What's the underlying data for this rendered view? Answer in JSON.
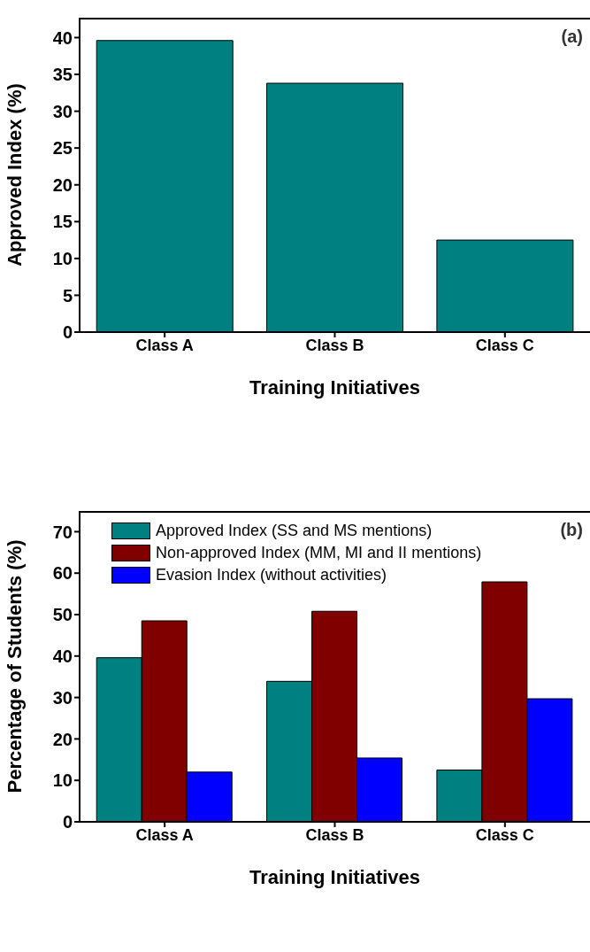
{
  "chart_data": [
    {
      "type": "bar",
      "xlabel": "Training Initiatives",
      "ylabel": "Approved Index (%)",
      "annotations": [
        "(a)"
      ],
      "categories": [
        "Class A",
        "Class B",
        "Class C"
      ],
      "series": [
        {
          "color": "#008080",
          "values": [
            39.6,
            33.8,
            12.5
          ]
        }
      ],
      "ylim": [
        0,
        42.7
      ],
      "yticks": [
        0,
        5,
        10,
        15,
        20,
        25,
        30,
        35,
        40
      ],
      "grid": false,
      "legend": false
    },
    {
      "type": "bar",
      "xlabel": "Training Initiatives",
      "ylabel": "Percentage of Students (%)",
      "annotations": [
        "(b)"
      ],
      "categories": [
        "Class A",
        "Class B",
        "Class C"
      ],
      "series": [
        {
          "name": "Approved Index (SS and MS mentions)",
          "color": "#008080",
          "values": [
            39.6,
            33.9,
            12.5
          ]
        },
        {
          "name": "Non-approved Index (MM, MI and II mentions)",
          "color": "#800000",
          "values": [
            48.5,
            50.8,
            57.9
          ]
        },
        {
          "name": "Evasion Index (without activities)",
          "color": "#0000ff",
          "values": [
            12,
            15.4,
            29.7
          ]
        }
      ],
      "ylim": [
        0,
        75
      ],
      "yticks": [
        0,
        10,
        20,
        30,
        40,
        50,
        60,
        70
      ],
      "grid": false,
      "legend": "top left"
    }
  ]
}
